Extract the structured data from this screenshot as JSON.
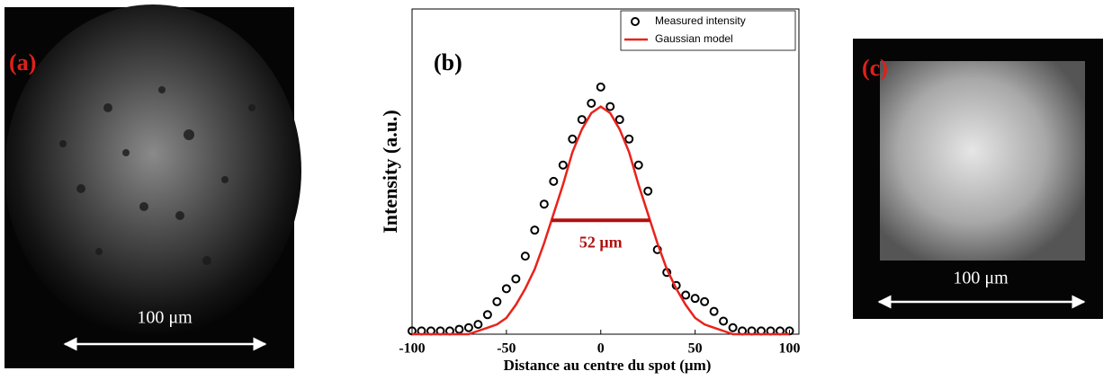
{
  "images": [
    {
      "label": "(a)",
      "scale": "100 μm"
    },
    {
      "label": "(c)",
      "scale": "100 μm"
    }
  ],
  "chart_data": {
    "type": "scatter",
    "panel_label": "(b)",
    "xlabel": "Distance au centre du spot (μm)",
    "ylabel": "Intensity (a.u.)",
    "xlim": [
      -100,
      105
    ],
    "ylim": [
      0,
      1
    ],
    "xticks": [
      -100,
      -50,
      0,
      50,
      100
    ],
    "legend": "upper right",
    "x": [
      -100,
      -95,
      -90,
      -85,
      -80,
      -75,
      -70,
      -65,
      -60,
      -55,
      -50,
      -45,
      -40,
      -35,
      -30,
      -25,
      -20,
      -15,
      -10,
      -5,
      0,
      5,
      10,
      15,
      20,
      25,
      30,
      35,
      40,
      45,
      50,
      55,
      60,
      65,
      70,
      75,
      80,
      85,
      90,
      95,
      100
    ],
    "series": [
      {
        "name": "Measured intensity",
        "color": "#000000",
        "marker": "circle",
        "values": [
          0.01,
          0.01,
          0.01,
          0.01,
          0.01,
          0.015,
          0.02,
          0.03,
          0.06,
          0.1,
          0.14,
          0.17,
          0.24,
          0.32,
          0.4,
          0.47,
          0.52,
          0.6,
          0.66,
          0.71,
          0.76,
          0.7,
          0.66,
          0.6,
          0.52,
          0.44,
          0.26,
          0.19,
          0.15,
          0.12,
          0.11,
          0.1,
          0.07,
          0.04,
          0.02,
          0.01,
          0.01,
          0.01,
          0.01,
          0.01,
          0.01
        ]
      },
      {
        "name": "Gaussian model",
        "color": "#e8221c",
        "marker": "line",
        "values": [
          0,
          0,
          0,
          0,
          0,
          0,
          0,
          0.01,
          0.02,
          0.03,
          0.05,
          0.09,
          0.14,
          0.2,
          0.28,
          0.37,
          0.46,
          0.56,
          0.63,
          0.68,
          0.7,
          0.68,
          0.63,
          0.56,
          0.46,
          0.37,
          0.28,
          0.2,
          0.14,
          0.09,
          0.05,
          0.03,
          0.02,
          0.01,
          0,
          0,
          0,
          0,
          0,
          0,
          0
        ]
      }
    ],
    "annotation": {
      "text": "52 μm",
      "x": [
        -26,
        26
      ],
      "y": 0.35,
      "color": "#b01010"
    }
  }
}
